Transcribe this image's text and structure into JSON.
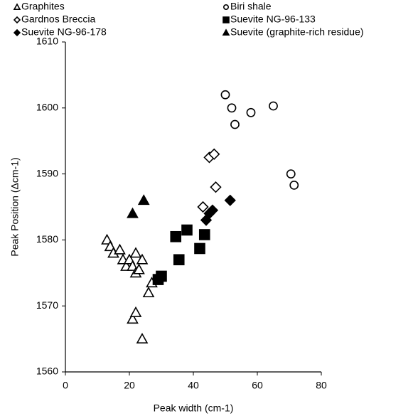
{
  "chart_data": {
    "type": "scatter",
    "xlabel": "Peak width (cm-1)",
    "ylabel": "Peak Position (Δcm-1)",
    "xlim": [
      0,
      80
    ],
    "xticks": [
      0,
      20,
      40,
      60,
      80
    ],
    "ylim": [
      1560,
      1610
    ],
    "yticks": [
      1560,
      1570,
      1580,
      1590,
      1600,
      1610
    ],
    "series": [
      {
        "name": "Graphites",
        "marker": "triangle",
        "filled": false,
        "color": "#000000",
        "x": [
          13,
          14,
          15,
          17,
          18,
          19,
          20,
          21,
          22,
          22,
          23,
          24,
          21,
          22,
          24,
          26,
          27
        ],
        "values": [
          1580,
          1579,
          1578,
          1578.5,
          1577,
          1576,
          1577,
          1576,
          1578,
          1575,
          1575.5,
          1577,
          1568,
          1569,
          1565,
          1572,
          1573.5
        ]
      },
      {
        "name": "Biri shale",
        "marker": "circle",
        "filled": false,
        "color": "#000000",
        "x": [
          50,
          52,
          53,
          58,
          65,
          70.5,
          71.5
        ],
        "values": [
          1602,
          1600,
          1597.5,
          1599.3,
          1600.3,
          1590,
          1588.3
        ]
      },
      {
        "name": "Gardnos Breccia",
        "marker": "diamond",
        "filled": false,
        "color": "#000000",
        "x": [
          43,
          45,
          46.5,
          47
        ],
        "values": [
          1585,
          1592.5,
          1593,
          1588
        ]
      },
      {
        "name": "Suevite NG-96-133",
        "marker": "square",
        "filled": true,
        "color": "#000000",
        "x": [
          29,
          30,
          34.5,
          35.5,
          38,
          42,
          43.5
        ],
        "values": [
          1574,
          1574.5,
          1580.5,
          1577,
          1581.5,
          1578.7,
          1580.8
        ]
      },
      {
        "name": "Suevite NG-96-178",
        "marker": "diamond",
        "filled": true,
        "color": "#000000",
        "x": [
          44,
          45,
          46,
          51.5
        ],
        "values": [
          1583,
          1584,
          1584.5,
          1586
        ]
      },
      {
        "name": "Suevite (graphite-rich residue)",
        "marker": "triangle",
        "filled": true,
        "color": "#000000",
        "x": [
          21,
          24.5
        ],
        "values": [
          1584,
          1586
        ]
      }
    ]
  }
}
